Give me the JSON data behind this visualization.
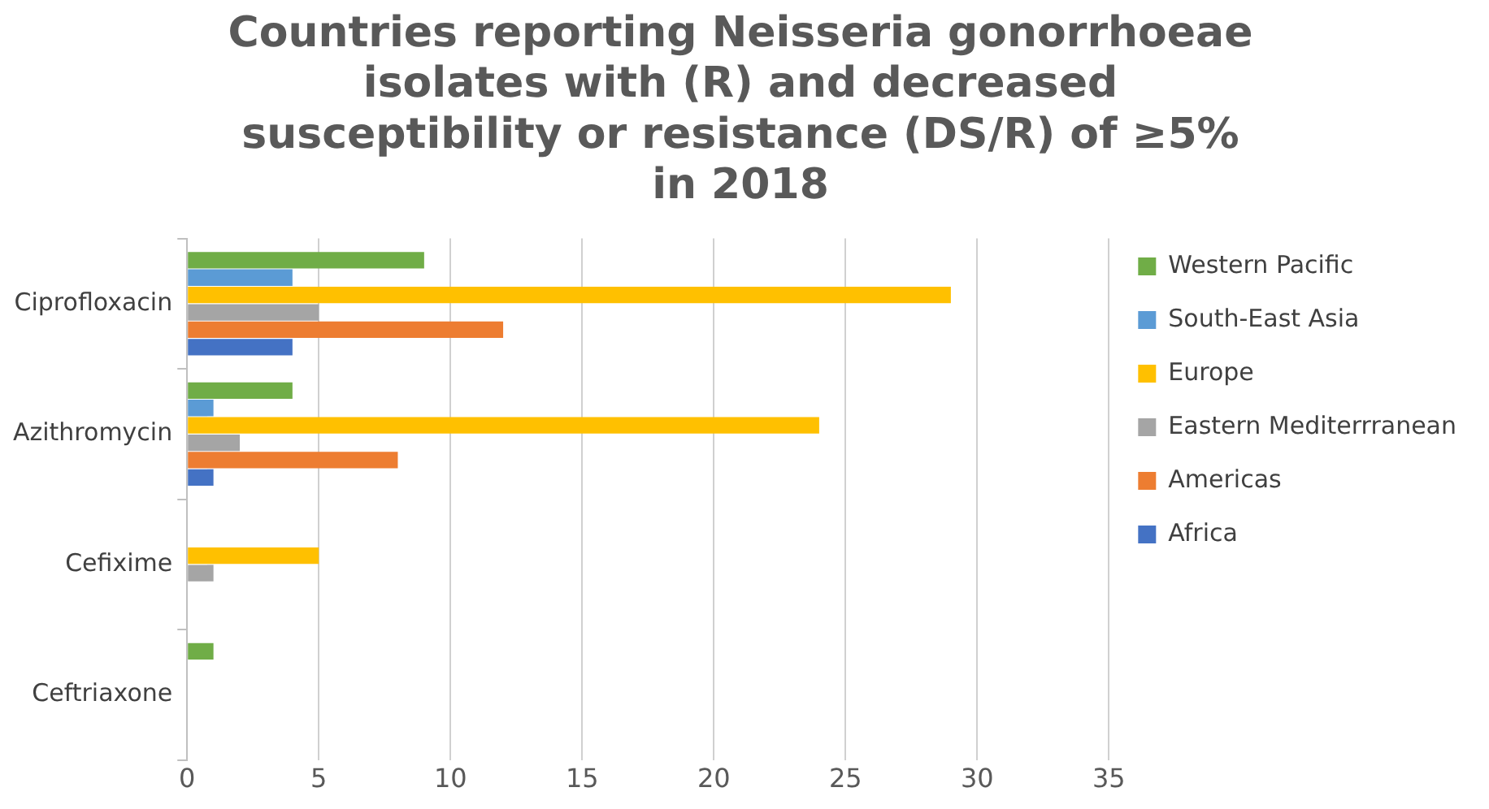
{
  "chart_data": {
    "type": "bar",
    "orientation": "horizontal",
    "title": "Countries reporting Neisseria gonorrhoeae isolates with (R) and decreased susceptibility or resistance (DS/R) of ≥5% in 2018",
    "categories": [
      "Ciprofloxacin",
      "Azithromycin",
      "Cefixime",
      "Ceftriaxone"
    ],
    "series": [
      {
        "name": "Western Pacific",
        "color": "#70ad47",
        "values": [
          9,
          4,
          0,
          1
        ]
      },
      {
        "name": "South-East Asia",
        "color": "#5b9bd5",
        "values": [
          4,
          1,
          0,
          0
        ]
      },
      {
        "name": "Europe",
        "color": "#ffc000",
        "values": [
          29,
          24,
          5,
          0
        ]
      },
      {
        "name": "Eastern Mediterrranean",
        "color": "#a5a5a5",
        "values": [
          5,
          2,
          1,
          0
        ]
      },
      {
        "name": "Americas",
        "color": "#ed7d31",
        "values": [
          12,
          8,
          0,
          0
        ]
      },
      {
        "name": "Africa",
        "color": "#4472c4",
        "values": [
          4,
          1,
          0,
          0
        ]
      }
    ],
    "xlim": [
      0,
      35
    ],
    "xticks": [
      0,
      5,
      10,
      15,
      20,
      25,
      30,
      35
    ],
    "grid": "x",
    "legend": "right"
  }
}
